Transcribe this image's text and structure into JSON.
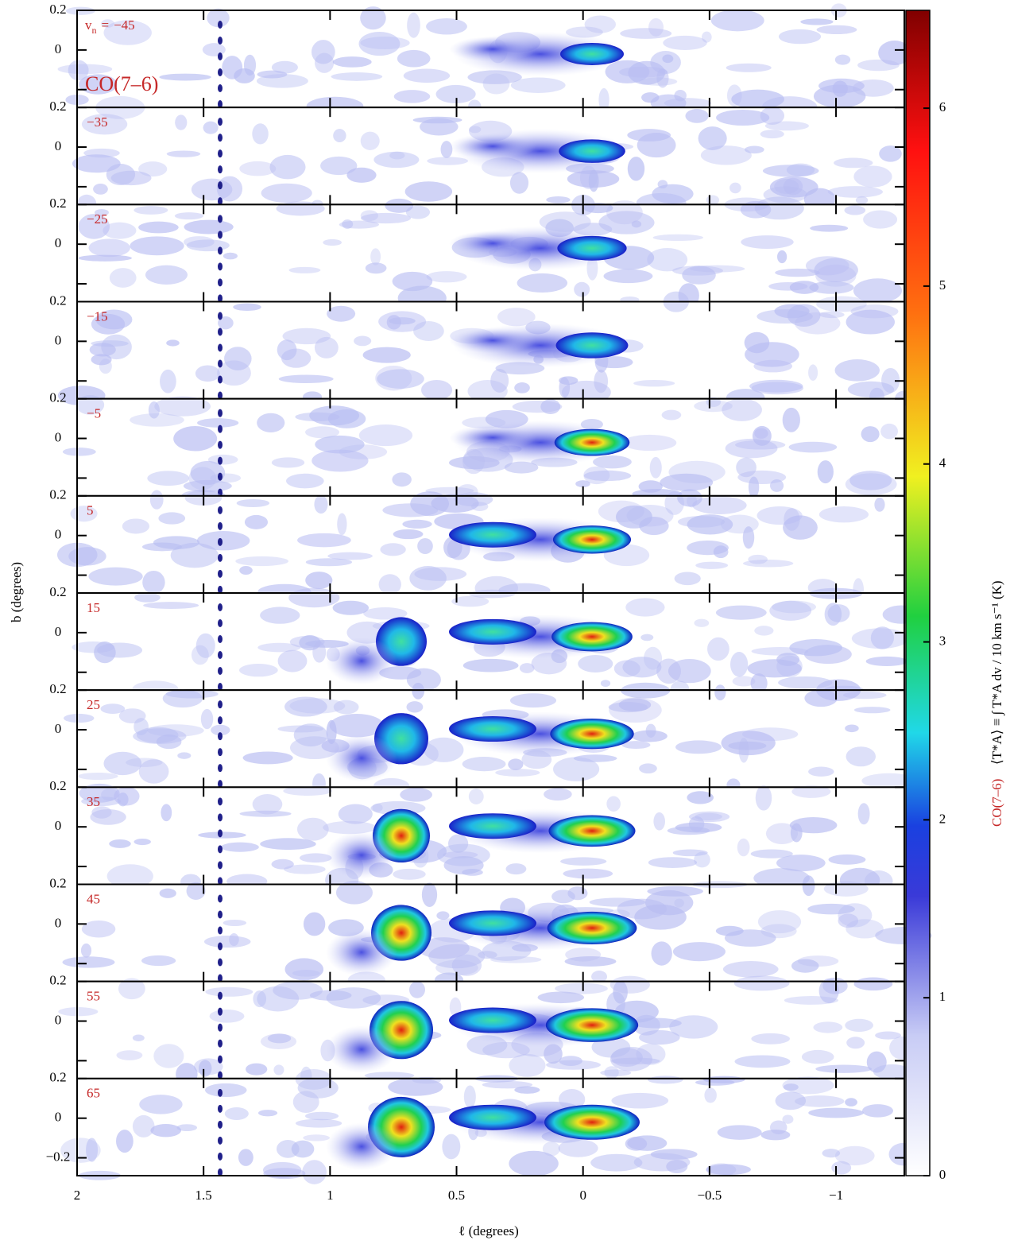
{
  "chart_data": {
    "type": "channel-maps",
    "line_label": "CO(7–6)",
    "velocity_symbol": "v",
    "velocity_subscript": "n",
    "velocity_equals": "=",
    "velocities": [
      {
        "value": -45,
        "label": "−45"
      },
      {
        "value": -35,
        "label": "−35"
      },
      {
        "value": -25,
        "label": "−25"
      },
      {
        "value": -15,
        "label": "−15"
      },
      {
        "value": -5,
        "label": "−5"
      },
      5,
      15,
      25,
      35,
      45,
      55,
      65
    ],
    "x_label": "ℓ (degrees)",
    "y_label": "b (degrees)",
    "xlim": [
      2,
      -1.27
    ],
    "xticks": [
      2,
      1.5,
      1,
      0.5,
      0,
      {
        "value": -0.5,
        "label": "−0.5"
      },
      {
        "value": -1,
        "label": "−1"
      }
    ],
    "ylim": [
      -0.29,
      0.2
    ],
    "yticks": [
      {
        "value": -0.2,
        "label": "−0.2"
      },
      0,
      0.2
    ],
    "colorbar_label": "CO(7–6)",
    "colorbar_unit": "⟨T*A⟩ ≡ ∫ T*A dv / 10 km s⁻¹ (K)",
    "zlim": [
      0,
      6.55
    ],
    "zticks": [
      0,
      1,
      2,
      3,
      4,
      5,
      6
    ]
  }
}
